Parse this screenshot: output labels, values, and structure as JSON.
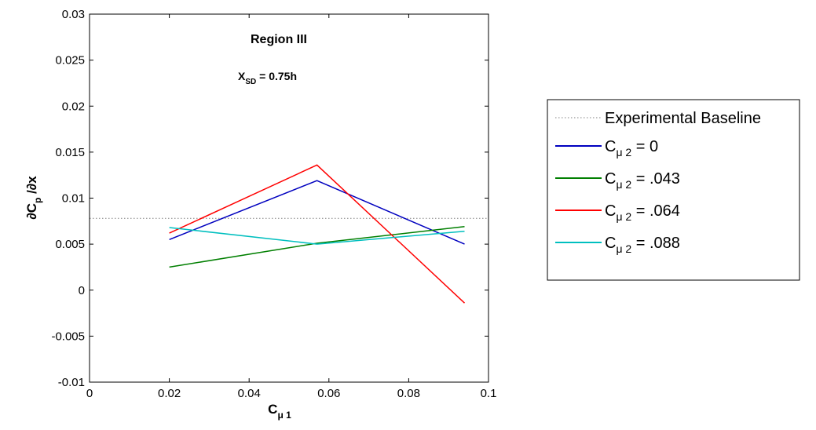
{
  "chart_data": {
    "type": "line",
    "title": "",
    "xlabel": {
      "main": "C",
      "sub": "μ 1"
    },
    "ylabel": {
      "pre": "∂C",
      "sub": "p",
      "post": " /∂x"
    },
    "xlim": [
      0,
      0.1
    ],
    "ylim": [
      -0.01,
      0.03
    ],
    "xticks": [
      0,
      0.02,
      0.04,
      0.06,
      0.08,
      0.1
    ],
    "xtick_labels": [
      "0",
      "0.02",
      "0.04",
      "0.06",
      "0.08",
      "0.1"
    ],
    "yticks": [
      -0.01,
      -0.005,
      0,
      0.005,
      0.01,
      0.015,
      0.02,
      0.025,
      0.03
    ],
    "ytick_labels": [
      "-0.01",
      "-0.005",
      "0",
      "0.005",
      "0.01",
      "0.015",
      "0.02",
      "0.025",
      "0.03"
    ],
    "grid": false,
    "legend_position": "outside-right",
    "annotations": {
      "region": "Region III",
      "xsd": {
        "main": "X",
        "sub": "SD",
        "post": " = 0.75h"
      }
    },
    "baseline": {
      "name": "Experimental Baseline",
      "y": 0.0078,
      "color": "#808080",
      "style": "dotted"
    },
    "x": [
      0.02,
      0.057,
      0.094
    ],
    "series": [
      {
        "name": "C",
        "sub": "μ 2",
        "suffix": " = 0",
        "color": "#0000bf",
        "values": [
          0.0055,
          0.0119,
          0.005
        ]
      },
      {
        "name": "C",
        "sub": "μ 2",
        "suffix": " = .043",
        "color": "#007f00",
        "values": [
          0.0025,
          0.0051,
          0.0069
        ]
      },
      {
        "name": "C",
        "sub": "μ 2",
        "suffix": " = .064",
        "color": "#ff0000",
        "values": [
          0.0062,
          0.0136,
          -0.0014
        ]
      },
      {
        "name": "C",
        "sub": "μ 2",
        "suffix": " = .088",
        "color": "#00bfbf",
        "values": [
          0.0068,
          0.005,
          0.0064
        ]
      }
    ]
  }
}
